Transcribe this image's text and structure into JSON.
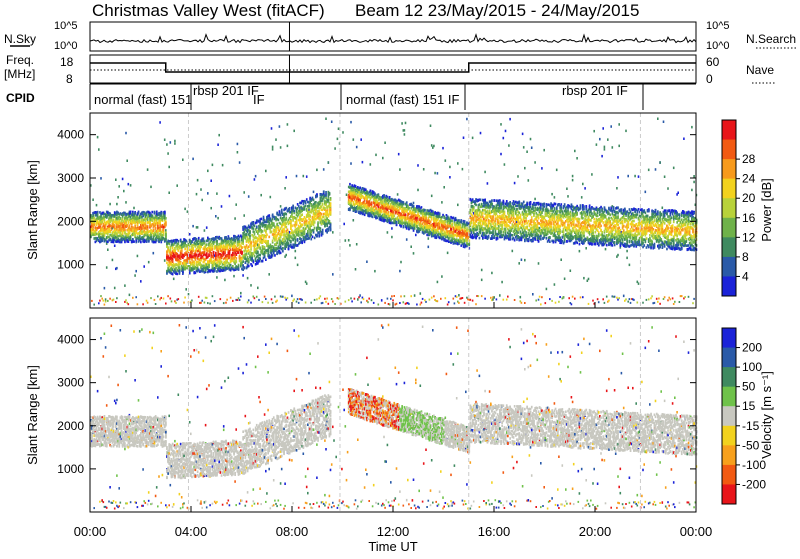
{
  "header": {
    "title_left": "Christmas Valley West (fitACF)",
    "title_right": "Beam 12 23/May/2015 - 24/May/2015"
  },
  "strips": {
    "nsky_label": "N.Sky",
    "nsky_ticks": [
      "10^5",
      "10^0"
    ],
    "nsearch_label": "N.Search",
    "nsearch_ticks": [
      "10^5",
      "10^0"
    ],
    "freq_label_1": "Freq.",
    "freq_label_2": "[MHz]",
    "freq_ticks": [
      "18",
      "8"
    ],
    "nave_label": "Nave",
    "nave_ticks": [
      "60",
      "0"
    ],
    "cpid_label": "CPID",
    "cpid_segments": [
      "normal (fast) 151",
      "rbsp 201 IF",
      "normal (fast) 151 IF",
      "rbsp 201 IF"
    ],
    "cpid_extra": "IF"
  },
  "chart_data": [
    {
      "type": "heatmap",
      "name": "power",
      "xlabel": "",
      "ylabel": "Slant Range [km]",
      "x_range_hours": [
        0,
        24
      ],
      "ylim": [
        0,
        4500
      ],
      "yticks": [
        "1000",
        "2000",
        "3000",
        "4000"
      ],
      "colorbar_label": "Power [dB]",
      "colorbar_ticks": [
        "4",
        "8",
        "12",
        "16",
        "20",
        "24",
        "28"
      ],
      "colorbar_colors": [
        "#1b23d8",
        "#2a5aa8",
        "#3f8a60",
        "#6fb24a",
        "#b8d23a",
        "#f2d21e",
        "#f79a1c",
        "#f25a12",
        "#e8151a"
      ],
      "bands": [
        {
          "t": [
            0,
            3
          ],
          "range_center": [
            1900,
            1900
          ],
          "width": 350,
          "intensity": 0.75
        },
        {
          "t": [
            3,
            6
          ],
          "range_center": [
            1200,
            1300
          ],
          "width": 400,
          "intensity": 0.9
        },
        {
          "t": [
            6,
            9.5
          ],
          "range_center": [
            1400,
            2300
          ],
          "width": 500,
          "intensity": 0.6
        },
        {
          "t": [
            10.2,
            15
          ],
          "range_center": [
            2600,
            1700
          ],
          "width": 300,
          "intensity": 0.8
        },
        {
          "t": [
            15,
            24
          ],
          "range_center": [
            2100,
            1800
          ],
          "width": 450,
          "intensity": 0.65
        }
      ]
    },
    {
      "type": "heatmap",
      "name": "velocity",
      "xlabel": "Time UT",
      "ylabel": "Slant Range [km]",
      "x_range_hours": [
        0,
        24
      ],
      "ylim": [
        0,
        4500
      ],
      "yticks": [
        "1000",
        "2000",
        "3000",
        "4000"
      ],
      "xticks": [
        "00:00",
        "04:00",
        "08:00",
        "12:00",
        "16:00",
        "20:00",
        "00:00"
      ],
      "colorbar_label": "Velocity [m s⁻¹]",
      "colorbar_ticks": [
        "200",
        "100",
        "50",
        "15",
        "-15",
        "-50",
        "-100",
        "-200"
      ],
      "colorbar_colors": [
        "#1b23d8",
        "#2a5aa8",
        "#3f8a60",
        "#6fc24a",
        "#c8c8c0",
        "#f2d21e",
        "#f7a01c",
        "#f25a12",
        "#e8151a"
      ]
    }
  ]
}
